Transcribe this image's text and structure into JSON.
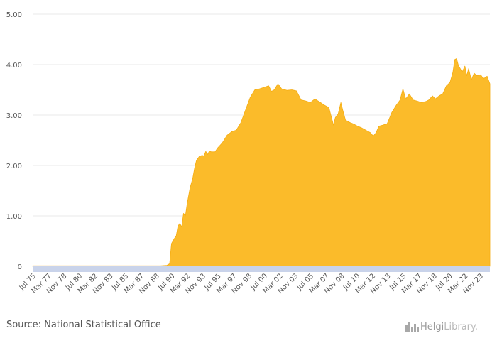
{
  "source_text": "Source: National Statistical Office",
  "logo": {
    "name": "Helgi",
    "suffix": "Library."
  },
  "colors": {
    "area": "#FBBB2A",
    "area_stroke": "#F5AD14",
    "axis_band": "#C9D3EA",
    "grid": "#e8e8e8"
  },
  "chart_data": {
    "type": "area",
    "title": "",
    "xlabel": "",
    "ylabel": "",
    "ylim": [
      0,
      5
    ],
    "yticks": [
      0,
      1,
      2,
      3,
      4,
      5
    ],
    "ytick_labels": [
      "0",
      "1.00",
      "2.00",
      "3.00",
      "4.00",
      "5.00"
    ],
    "xticks": [
      {
        "t": 1975.5,
        "label": "Jul 75"
      },
      {
        "t": 1977.17,
        "label": "Mar 77"
      },
      {
        "t": 1978.83,
        "label": "Nov 78"
      },
      {
        "t": 1980.5,
        "label": "Jul 80"
      },
      {
        "t": 1982.17,
        "label": "Mar 82"
      },
      {
        "t": 1983.83,
        "label": "Nov 83"
      },
      {
        "t": 1985.5,
        "label": "Jul 85"
      },
      {
        "t": 1987.17,
        "label": "Mar 87"
      },
      {
        "t": 1988.83,
        "label": "Nov 88"
      },
      {
        "t": 1990.5,
        "label": "Jul 90"
      },
      {
        "t": 1992.17,
        "label": "Mar 92"
      },
      {
        "t": 1993.83,
        "label": "Nov 93"
      },
      {
        "t": 1995.5,
        "label": "Jul 95"
      },
      {
        "t": 1997.17,
        "label": "Mar 97"
      },
      {
        "t": 1998.83,
        "label": "Nov 98"
      },
      {
        "t": 2000.5,
        "label": "Jul 00"
      },
      {
        "t": 2002.17,
        "label": "Mar 02"
      },
      {
        "t": 2003.83,
        "label": "Nov 03"
      },
      {
        "t": 2005.5,
        "label": "Jul 05"
      },
      {
        "t": 2007.17,
        "label": "Mar 07"
      },
      {
        "t": 2008.83,
        "label": "Nov 08"
      },
      {
        "t": 2010.5,
        "label": "Jul 10"
      },
      {
        "t": 2012.17,
        "label": "Mar 12"
      },
      {
        "t": 2013.83,
        "label": "Nov 13"
      },
      {
        "t": 2015.5,
        "label": "Jul 15"
      },
      {
        "t": 2017.17,
        "label": "Mar 17"
      },
      {
        "t": 2018.83,
        "label": "Nov 18"
      },
      {
        "t": 2020.5,
        "label": "Jul 20"
      },
      {
        "t": 2022.17,
        "label": "Mar 22"
      },
      {
        "t": 2023.83,
        "label": "Nov 23"
      }
    ],
    "x_range": [
      1975.5,
      2024.9
    ],
    "series": [
      {
        "name": "Value",
        "points": [
          [
            1975.5,
            0.01
          ],
          [
            1989.3,
            0.01
          ],
          [
            1990.0,
            0.02
          ],
          [
            1990.3,
            0.05
          ],
          [
            1990.5,
            0.45
          ],
          [
            1990.8,
            0.55
          ],
          [
            1991.0,
            0.6
          ],
          [
            1991.2,
            0.8
          ],
          [
            1991.4,
            0.85
          ],
          [
            1991.6,
            0.78
          ],
          [
            1991.8,
            1.05
          ],
          [
            1992.0,
            1.0
          ],
          [
            1992.2,
            1.25
          ],
          [
            1992.5,
            1.55
          ],
          [
            1992.8,
            1.75
          ],
          [
            1993.0,
            1.95
          ],
          [
            1993.2,
            2.1
          ],
          [
            1993.5,
            2.18
          ],
          [
            1993.8,
            2.2
          ],
          [
            1994.0,
            2.19
          ],
          [
            1994.2,
            2.28
          ],
          [
            1994.4,
            2.22
          ],
          [
            1994.6,
            2.29
          ],
          [
            1994.8,
            2.27
          ],
          [
            1995.2,
            2.27
          ],
          [
            1995.5,
            2.35
          ],
          [
            1996.0,
            2.45
          ],
          [
            1996.5,
            2.6
          ],
          [
            1997.0,
            2.67
          ],
          [
            1997.5,
            2.7
          ],
          [
            1998.0,
            2.85
          ],
          [
            1998.5,
            3.1
          ],
          [
            1999.0,
            3.35
          ],
          [
            1999.5,
            3.5
          ],
          [
            2000.0,
            3.52
          ],
          [
            2000.5,
            3.55
          ],
          [
            2001.0,
            3.58
          ],
          [
            2001.3,
            3.47
          ],
          [
            2001.6,
            3.5
          ],
          [
            2002.0,
            3.62
          ],
          [
            2002.4,
            3.52
          ],
          [
            2003.0,
            3.49
          ],
          [
            2003.5,
            3.5
          ],
          [
            2004.0,
            3.48
          ],
          [
            2004.5,
            3.3
          ],
          [
            2005.0,
            3.28
          ],
          [
            2005.5,
            3.25
          ],
          [
            2006.0,
            3.32
          ],
          [
            2006.5,
            3.26
          ],
          [
            2007.0,
            3.2
          ],
          [
            2007.5,
            3.15
          ],
          [
            2008.0,
            2.8
          ],
          [
            2008.2,
            2.95
          ],
          [
            2008.5,
            3.02
          ],
          [
            2008.8,
            3.25
          ],
          [
            2009.0,
            3.1
          ],
          [
            2009.3,
            2.9
          ],
          [
            2009.8,
            2.85
          ],
          [
            2010.2,
            2.82
          ],
          [
            2010.6,
            2.78
          ],
          [
            2011.0,
            2.75
          ],
          [
            2011.5,
            2.7
          ],
          [
            2012.0,
            2.65
          ],
          [
            2012.3,
            2.58
          ],
          [
            2012.6,
            2.65
          ],
          [
            2012.9,
            2.78
          ],
          [
            2013.3,
            2.8
          ],
          [
            2013.8,
            2.83
          ],
          [
            2014.3,
            3.05
          ],
          [
            2014.8,
            3.2
          ],
          [
            2015.2,
            3.3
          ],
          [
            2015.5,
            3.52
          ],
          [
            2015.8,
            3.32
          ],
          [
            2016.2,
            3.42
          ],
          [
            2016.6,
            3.3
          ],
          [
            2017.0,
            3.28
          ],
          [
            2017.5,
            3.25
          ],
          [
            2018.0,
            3.27
          ],
          [
            2018.3,
            3.3
          ],
          [
            2018.7,
            3.38
          ],
          [
            2019.0,
            3.32
          ],
          [
            2019.4,
            3.38
          ],
          [
            2019.8,
            3.42
          ],
          [
            2020.2,
            3.58
          ],
          [
            2020.6,
            3.65
          ],
          [
            2020.9,
            3.85
          ],
          [
            2021.1,
            4.1
          ],
          [
            2021.3,
            4.12
          ],
          [
            2021.5,
            3.98
          ],
          [
            2021.7,
            3.92
          ],
          [
            2021.9,
            3.85
          ],
          [
            2022.2,
            3.97
          ],
          [
            2022.4,
            3.78
          ],
          [
            2022.6,
            3.92
          ],
          [
            2022.9,
            3.7
          ],
          [
            2023.2,
            3.83
          ],
          [
            2023.5,
            3.78
          ],
          [
            2023.9,
            3.8
          ],
          [
            2024.2,
            3.72
          ],
          [
            2024.6,
            3.77
          ],
          [
            2024.9,
            3.62
          ]
        ]
      }
    ]
  }
}
